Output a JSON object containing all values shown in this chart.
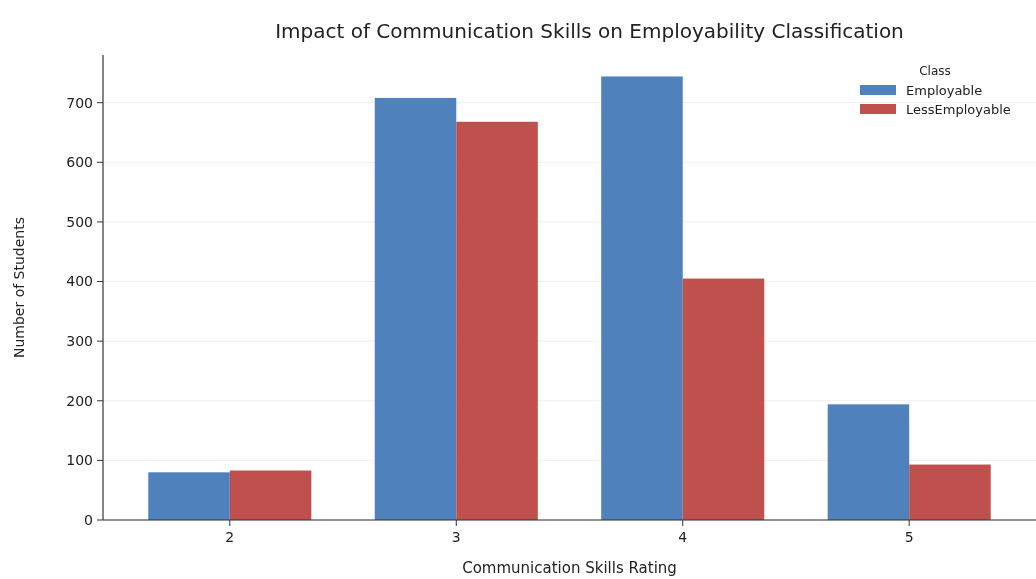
{
  "chart_data": {
    "type": "bar",
    "title": "Impact of Communication Skills on Employability Classification",
    "xlabel": "Communication Skills Rating",
    "ylabel": "Number of Students",
    "legend_title": "Class",
    "categories": [
      "2",
      "3",
      "4",
      "5"
    ],
    "series": [
      {
        "name": "Employable",
        "color": "#4f81bd",
        "values": [
          80,
          708,
          744,
          194
        ]
      },
      {
        "name": "LessEmployable",
        "color": "#c0504d",
        "values": [
          83,
          668,
          405,
          93
        ]
      }
    ],
    "ylim": [
      0,
      780
    ],
    "yticks": [
      0,
      100,
      200,
      300,
      400,
      500,
      600,
      700
    ],
    "grid": "y",
    "legend": "top right"
  }
}
